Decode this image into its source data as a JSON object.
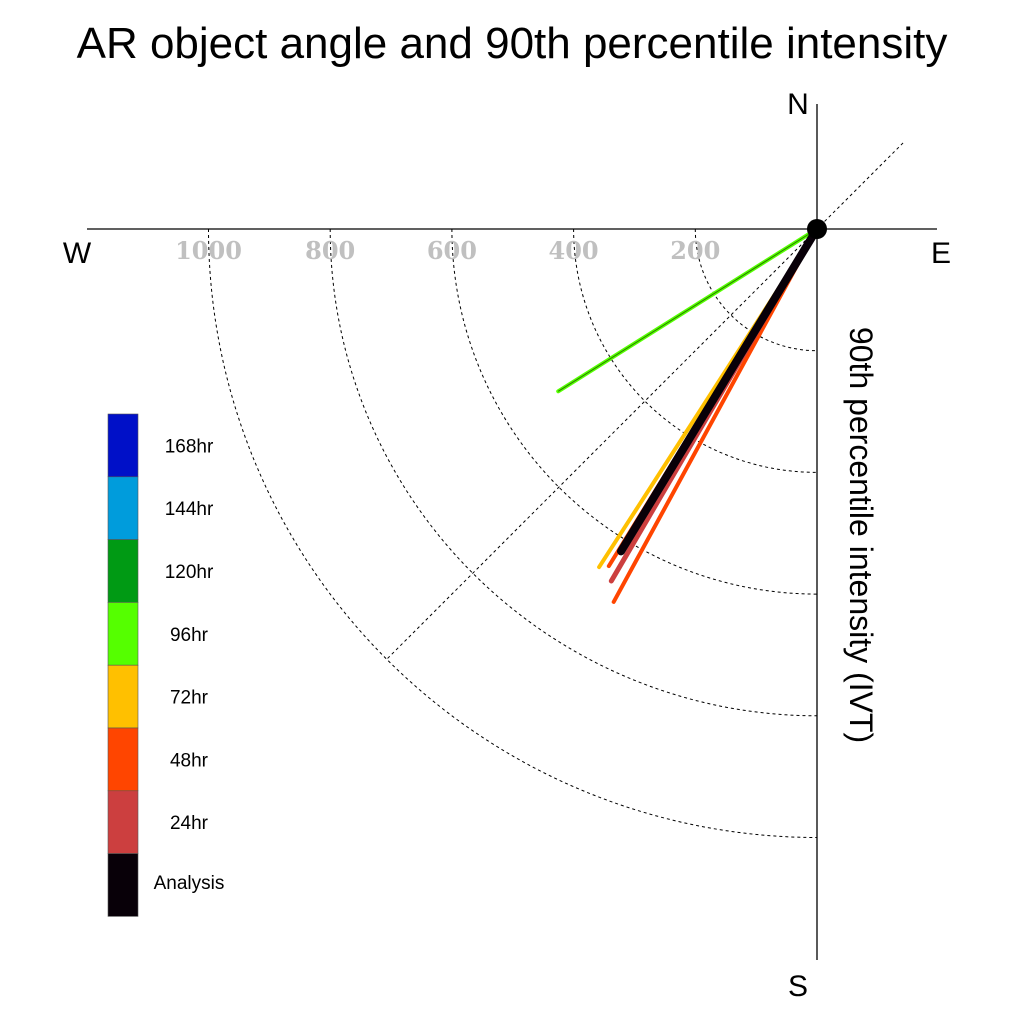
{
  "chart_data": {
    "type": "polar-quadrant-vectors",
    "title": "AR object angle and 90th percentile intensity",
    "radial_label": "90th percentile intensity (IVT)",
    "compass": {
      "north": "N",
      "south": "S",
      "east": "E",
      "west": "W"
    },
    "radial_ticks": [
      200,
      400,
      600,
      800,
      1000
    ],
    "radial_tick_labels": [
      "200",
      "400",
      "600",
      "800",
      "1000"
    ],
    "rmax": 1200,
    "guide_angle_deg": 45,
    "series": [
      {
        "name": "96hr",
        "color": "#55ff00",
        "angle_deg": 237.9,
        "magnitude": 502,
        "width": 4
      },
      {
        "name": "72hr",
        "color": "#ffc000",
        "angle_deg": 212.8,
        "magnitude": 661,
        "width": 4
      },
      {
        "name": "48hr",
        "color": "#ff4500",
        "angle_deg": 211.7,
        "magnitude": 651,
        "width": 4
      },
      {
        "name": "48hr",
        "color": "#ff4500",
        "angle_deg": 208.6,
        "magnitude": 698,
        "width": 4
      },
      {
        "name": "24hr",
        "color": "#cc3f3f",
        "angle_deg": 210.3,
        "magnitude": 670,
        "width": 5
      },
      {
        "name": "Analysis",
        "color": "#080008",
        "angle_deg": 211.3,
        "magnitude": 620,
        "width": 8
      }
    ],
    "legend": [
      {
        "label": "168hr",
        "color": "#0010c8"
      },
      {
        "label": "144hr",
        "color": "#009cdc"
      },
      {
        "label": "120hr",
        "color": "#009a14"
      },
      {
        "label": "96hr",
        "color": "#55ff00"
      },
      {
        "label": "72hr",
        "color": "#ffc000"
      },
      {
        "label": "48hr",
        "color": "#ff4500"
      },
      {
        "label": "24hr",
        "color": "#cc3f3f"
      },
      {
        "label": "Analysis",
        "color": "#080008"
      }
    ]
  }
}
